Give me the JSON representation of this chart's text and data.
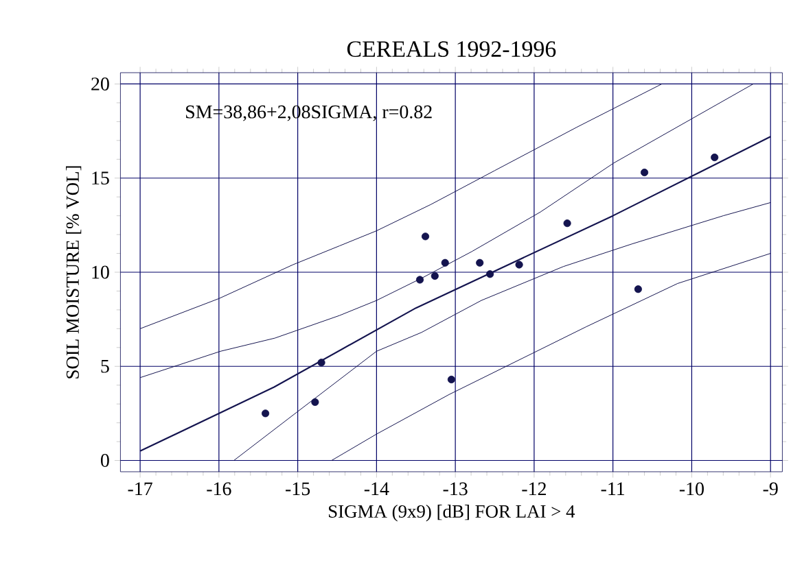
{
  "chart_data": {
    "type": "scatter",
    "title": "CEREALS 1992-1996",
    "xlabel": "SIGMA (9x9) [dB] FOR LAI > 4",
    "ylabel": "SOIL MOISTURE [% VOL]",
    "annotations": [
      "SM=38,86+2,08SIGMA, r=0.82"
    ],
    "xlim": [
      -17.25,
      -8.85
    ],
    "ylim": [
      -0.6,
      20.6
    ],
    "xticks": [
      -17,
      -16,
      -15,
      -14,
      -13,
      -12,
      -11,
      -10,
      -9
    ],
    "yticks": [
      0,
      5,
      10,
      15,
      20
    ],
    "grid": true,
    "marker": "circle",
    "series": [
      {
        "color": "#14144f",
        "x": [
          -15.41,
          -14.78,
          -14.7,
          -13.45,
          -13.38,
          -13.26,
          -13.13,
          -13.05,
          -12.69,
          -12.56,
          -12.19,
          -11.58,
          -10.68,
          -10.6,
          -9.71
        ],
        "values": [
          2.5,
          3.1,
          5.2,
          9.6,
          11.9,
          9.8,
          10.5,
          4.3,
          10.5,
          9.9,
          10.4,
          12.6,
          9.1,
          15.3,
          16.1
        ]
      },
      {
        "type": "line",
        "marker": "none",
        "color": "#14144f",
        "x": [
          -17,
          -15.3,
          -13.5,
          -11,
          -9
        ],
        "values": [
          0.5,
          3.9,
          8.1,
          13.0,
          17.2
        ]
      },
      {
        "type": "line",
        "marker": "none",
        "color": "#14144f",
        "x": [
          -17,
          -15.98,
          -15.29,
          -14.47,
          -14,
          -13.42,
          -12.79,
          -11.92,
          -10.99,
          -9.22
        ],
        "values": [
          4.4,
          5.8,
          6.5,
          7.7,
          8.5,
          9.7,
          11.1,
          13.2,
          15.8,
          20
        ]
      },
      {
        "type": "line",
        "marker": "none",
        "color": "#14144f",
        "x": [
          -17,
          -16,
          -15.06,
          -14.47,
          -14,
          -13.31,
          -12.5,
          -11.46,
          -10.38
        ],
        "values": [
          7,
          8.6,
          10.4,
          11.4,
          12.2,
          13.6,
          15.4,
          17.7,
          20
        ]
      },
      {
        "type": "line",
        "marker": "none",
        "color": "#14144f",
        "x": [
          -15.81,
          -15,
          -14,
          -13.43,
          -12.67,
          -11.63,
          -10.76,
          -9.6,
          -9
        ],
        "values": [
          0,
          2.6,
          5.8,
          6.8,
          8.5,
          10.3,
          11.5,
          13,
          13.7
        ]
      },
      {
        "type": "line",
        "marker": "none",
        "color": "#14144f",
        "x": [
          -14.57,
          -14,
          -13.08,
          -12.21,
          -11.34,
          -10.18,
          -9
        ],
        "values": [
          0,
          1.4,
          3.5,
          5.3,
          7.1,
          9.4,
          11
        ]
      }
    ]
  }
}
